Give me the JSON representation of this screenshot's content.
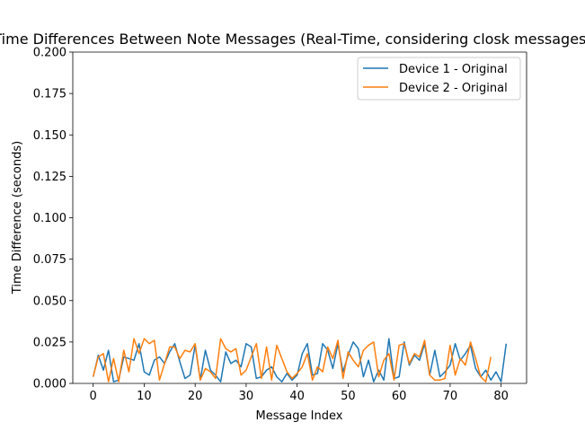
{
  "chart_data": {
    "type": "line",
    "title": "Time Differences Between Note Messages (Real-Time, considering closk messages)",
    "xlabel": "Message Index",
    "ylabel": "Time Difference (seconds)",
    "xlim": [
      -4,
      85
    ],
    "ylim": [
      0,
      0.2
    ],
    "xticks": [
      0,
      10,
      20,
      30,
      40,
      50,
      60,
      70,
      80
    ],
    "yticks": [
      0.0,
      0.025,
      0.05,
      0.075,
      0.1,
      0.125,
      0.15,
      0.175,
      0.2
    ],
    "ytick_labels": [
      "0.000",
      "0.025",
      "0.050",
      "0.075",
      "0.100",
      "0.125",
      "0.150",
      "0.175",
      "0.200"
    ],
    "grid": false,
    "legend_position": "top-right",
    "series": [
      {
        "name": "Device 1 - Original",
        "color": "#1f77b4",
        "values": [
          0.004,
          0.017,
          0.008,
          0.02,
          0.001,
          0.002,
          0.016,
          0.015,
          0.014,
          0.024,
          0.007,
          0.005,
          0.014,
          0.016,
          0.012,
          0.019,
          0.024,
          0.013,
          0.003,
          0.005,
          0.023,
          0.002,
          0.02,
          0.008,
          0.005,
          0.001,
          0.019,
          0.012,
          0.014,
          0.01,
          0.024,
          0.022,
          0.003,
          0.004,
          0.008,
          0.01,
          0.004,
          0.001,
          0.006,
          0.002,
          0.005,
          0.018,
          0.024,
          0.005,
          0.006,
          0.024,
          0.02,
          0.009,
          0.024,
          0.007,
          0.017,
          0.025,
          0.021,
          0.004,
          0.014,
          0.001,
          0.008,
          0.002,
          0.027,
          0.003,
          0.004,
          0.025,
          0.011,
          0.017,
          0.014,
          0.024,
          0.005,
          0.02,
          0.004,
          0.007,
          0.011,
          0.024,
          0.014,
          0.018,
          0.023,
          0.009,
          0.004,
          0.008,
          0.002,
          0.007,
          0.001,
          0.024
        ]
      },
      {
        "name": "Device 2 - Original",
        "color": "#ff7f0e",
        "values": [
          0.004,
          0.016,
          0.018,
          0.001,
          0.015,
          0.001,
          0.02,
          0.007,
          0.027,
          0.018,
          0.027,
          0.024,
          0.026,
          0.002,
          0.012,
          0.022,
          0.022,
          0.015,
          0.02,
          0.019,
          0.024,
          0.002,
          0.009,
          0.007,
          0.003,
          0.027,
          0.021,
          0.019,
          0.021,
          0.005,
          0.008,
          0.016,
          0.024,
          0.003,
          0.022,
          0.002,
          0.023,
          0.015,
          0.007,
          0.003,
          0.006,
          0.01,
          0.018,
          0.002,
          0.01,
          0.007,
          0.022,
          0.015,
          0.026,
          0.003,
          0.019,
          0.014,
          0.01,
          0.02,
          0.023,
          0.025,
          0.004,
          0.014,
          0.018,
          0.002,
          0.023,
          0.024,
          0.012,
          0.018,
          0.016,
          0.026,
          0.005,
          0.002,
          0.002,
          0.003,
          0.023,
          0.005,
          0.015,
          0.011,
          0.025,
          0.015,
          0.004,
          0.001,
          0.016
        ]
      }
    ]
  }
}
